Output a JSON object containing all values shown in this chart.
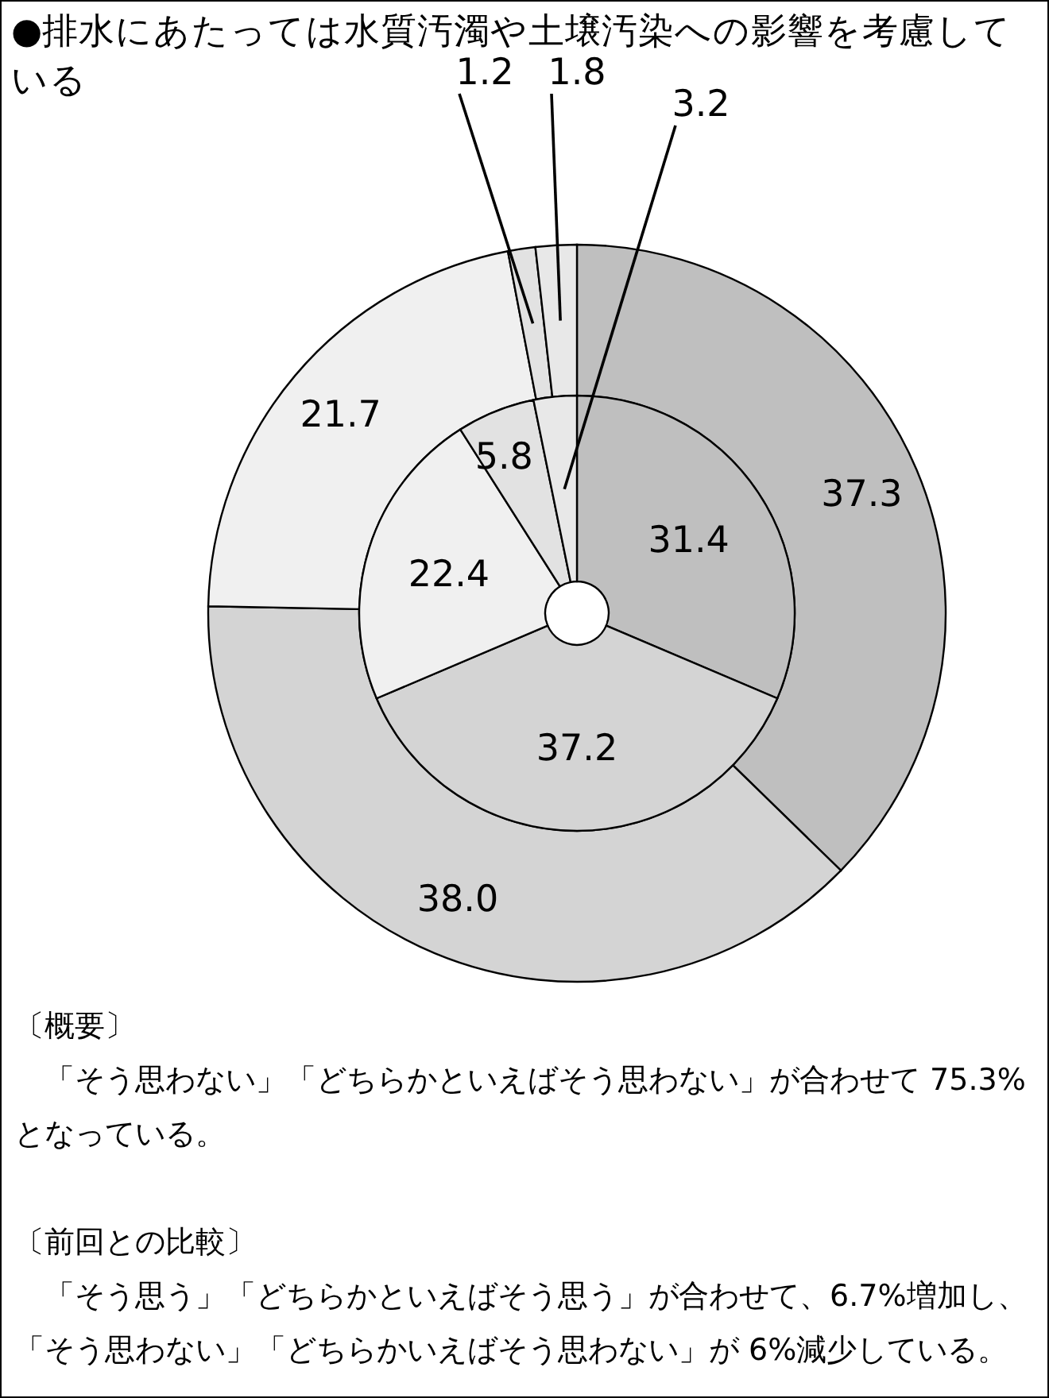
{
  "chart_data": {
    "type": "donut",
    "title": "●排水にあたっては水質汚濁や土壌汚染への影響を考慮している",
    "categories": [
      null,
      null,
      null,
      null,
      null
    ],
    "colors": [
      "#bfbfbf",
      "#d4d4d4",
      "#f0f0f0",
      "#e2e2e2",
      "#e8e8e8"
    ],
    "series": [
      {
        "values": [
          37.3,
          38.0,
          21.7,
          1.2,
          1.8
        ],
        "value_labels": [
          "37.3",
          "38.0",
          "21.7",
          "1.2",
          "1.8"
        ]
      },
      {
        "values": [
          31.4,
          37.2,
          22.4,
          5.8,
          3.2
        ],
        "value_labels": [
          "31.4",
          "37.2",
          "22.4",
          "5.8",
          "3.2"
        ]
      }
    ],
    "annotations": [
      "〔概要〕",
      "「そう思わない」「どちらかといえばそう思わない」が合わせて 75.3%となっている。",
      "〔前回との比較〕",
      "「そう思う」「どちらかといえばそう思う」が合わせて、6.7%増加し、「そう思わない」「どちらかいえばそう思わない」が 6%減少している。"
    ]
  }
}
